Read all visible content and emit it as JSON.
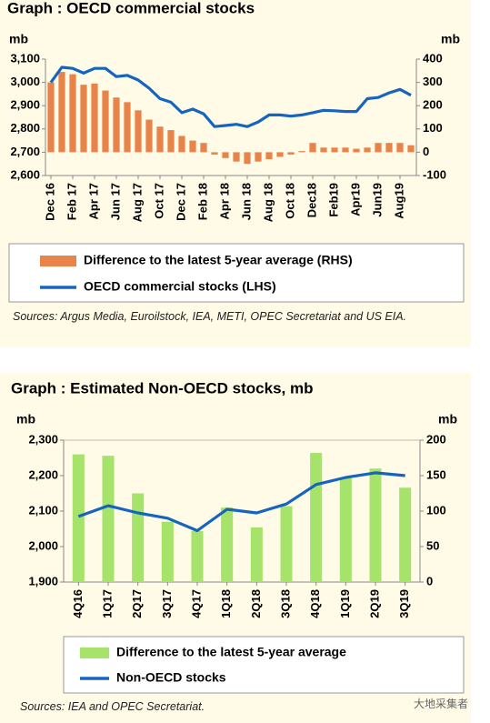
{
  "chart_data": [
    {
      "type": "combo",
      "title": "Graph : OECD commercial stocks",
      "y_label": "mb",
      "y2_label": "mb",
      "categories": [
        "Dec 16",
        null,
        "Feb 17",
        null,
        "Apr 17",
        null,
        "Jun 17",
        null,
        "Aug 17",
        null,
        "Oct 17",
        null,
        "Dec 17",
        null,
        "Feb 18",
        null,
        "Apr 18",
        null,
        "Jun 18",
        null,
        "Aug 18",
        null,
        "Oct 18",
        null,
        "Dec18",
        null,
        "Feb19",
        null,
        "Apr19",
        null,
        "Jun19",
        null,
        "Aug19",
        null
      ],
      "series": [
        {
          "name": "Difference to the latest 5-year average (RHS)",
          "type": "bar",
          "axis": "y2",
          "color": "#e8834a",
          "values": [
            300,
            345,
            335,
            290,
            295,
            265,
            235,
            215,
            180,
            140,
            110,
            95,
            70,
            50,
            40,
            -10,
            -25,
            -40,
            -50,
            -40,
            -30,
            -20,
            -10,
            5,
            40,
            20,
            20,
            20,
            15,
            20,
            40,
            40,
            40,
            30
          ]
        },
        {
          "name": "OECD commercial stocks (LHS)",
          "type": "line",
          "color": "#1565c0",
          "values": [
            3000,
            3065,
            3060,
            3040,
            3060,
            3060,
            3025,
            3030,
            3010,
            2975,
            2930,
            2915,
            2870,
            2885,
            2865,
            2810,
            2815,
            2820,
            2810,
            2830,
            2860,
            2860,
            2855,
            2860,
            2870,
            2880,
            2878,
            2875,
            2875,
            2930,
            2935,
            2955,
            2970,
            2945
          ]
        }
      ],
      "ylim": [
        2600,
        3100
      ],
      "yticks": [
        {
          "value": 2600,
          "label": "2,600"
        },
        {
          "value": 2700,
          "label": "2,700"
        },
        {
          "value": 2800,
          "label": "2,800"
        },
        {
          "value": 2900,
          "label": "2,900"
        },
        {
          "value": 3000,
          "label": "3,000"
        },
        {
          "value": 3100,
          "label": "3,100"
        }
      ],
      "y2lim": [
        -100,
        400
      ],
      "y2ticks": [
        -100,
        0,
        100,
        200,
        300,
        400
      ],
      "source": "Sources: Argus Media, Euroilstock, IEA, METI, OPEC Secretariat and US EIA."
    },
    {
      "type": "combo",
      "title": "Graph : Estimated Non-OECD stocks, mb",
      "y_label": "mb",
      "y2_label": "mb",
      "categories": [
        "4Q16",
        "1Q17",
        "2Q17",
        "3Q17",
        "4Q17",
        "1Q18",
        "2Q18",
        "3Q18",
        "4Q18",
        "1Q19",
        "2Q19",
        "3Q19"
      ],
      "series": [
        {
          "name": "Difference to the latest 5-year average",
          "type": "bar",
          "axis": "y2",
          "color": "#a6e36b",
          "values": [
            180,
            178,
            125,
            85,
            72,
            105,
            77,
            107,
            182,
            147,
            160,
            133
          ]
        },
        {
          "name": "Non-OECD stocks",
          "type": "line",
          "color": "#1565c0",
          "values": [
            2085,
            2115,
            2095,
            2080,
            2045,
            2105,
            2095,
            2120,
            2175,
            2195,
            2208,
            2200
          ]
        }
      ],
      "ylim": [
        1900,
        2300
      ],
      "yticks": [
        {
          "value": 1900,
          "label": "1,900"
        },
        {
          "value": 2000,
          "label": "2,000"
        },
        {
          "value": 2100,
          "label": "2,100"
        },
        {
          "value": 2200,
          "label": "2,200"
        },
        {
          "value": 2300,
          "label": "2,300"
        }
      ],
      "y2lim": [
        0,
        200
      ],
      "y2ticks": [
        0,
        50,
        100,
        150,
        200
      ],
      "source": "Sources: IEA and OPEC Secretariat."
    }
  ],
  "watermark": "大地采集者"
}
